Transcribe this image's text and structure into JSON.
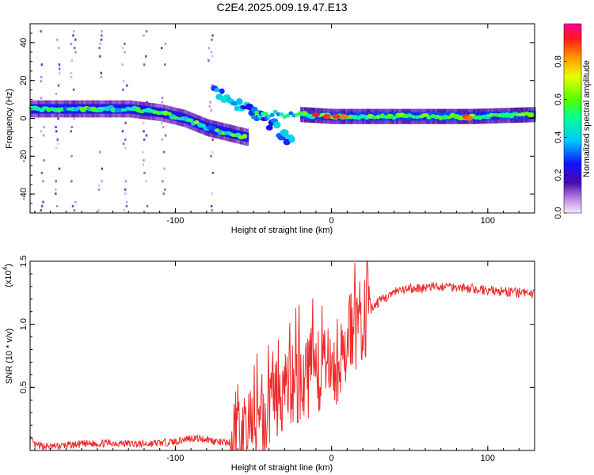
{
  "title": "C2E4.2025.009.19.47.E13",
  "chart_data": [
    {
      "type": "heatmap",
      "xlabel": "Height of straight line (km)",
      "ylabel": "Frequency (Hz)",
      "xlim": [
        -193,
        130
      ],
      "ylim": [
        -50,
        50
      ],
      "x_ticks": [
        -100,
        0,
        100
      ],
      "x_tick_labels": [
        "-100",
        "0",
        "100"
      ],
      "y_ticks": [
        -40,
        -20,
        0,
        20,
        40
      ],
      "y_tick_labels": [
        "-40",
        "-20",
        "0",
        "20",
        "40"
      ],
      "colorbar": {
        "label": "Normalized spectral amplitude",
        "range": [
          0,
          1
        ],
        "ticks": [
          0.0,
          0.2,
          0.4,
          0.6,
          0.8
        ],
        "tick_labels": [
          "0.0",
          "0.2",
          "0.4",
          "0.6",
          "0.8"
        ]
      },
      "main_ridge": {
        "x": [
          -193,
          -170,
          -150,
          -130,
          -110,
          -95,
          -80,
          -70,
          -60,
          -55
        ],
        "freq_hz": [
          5,
          5,
          5,
          5,
          3,
          0,
          -5,
          -7,
          -9,
          -10
        ]
      },
      "branch_ridge": {
        "x": [
          -75,
          -65,
          -55,
          -45,
          -35,
          -25
        ],
        "freq_hz": [
          15,
          10,
          5,
          0,
          -5,
          -13
        ]
      },
      "flat_ridge": {
        "x": [
          -45,
          -20,
          0,
          20,
          60,
          90,
          130
        ],
        "freq_hz": [
          2,
          2,
          1,
          1,
          1,
          1,
          2
        ]
      },
      "hotspots": [
        {
          "x": -10,
          "freq_hz": 2,
          "amp": 0.95
        },
        {
          "x": -3,
          "freq_hz": 1,
          "amp": 0.9
        },
        {
          "x": 3,
          "freq_hz": 1,
          "amp": 0.9
        },
        {
          "x": 8,
          "freq_hz": 1,
          "amp": 0.85
        },
        {
          "x": 86,
          "freq_hz": 1,
          "amp": 0.9
        },
        {
          "x": 88,
          "freq_hz": 0,
          "amp": 0.85
        }
      ]
    },
    {
      "type": "line",
      "xlabel": "Height of straight line (km)",
      "ylabel": "SNR (10 * v/v)",
      "y_multiplier_label": "(x10^4)",
      "y_multiplier_base": "(x10",
      "y_multiplier_exp": "4",
      "y_multiplier_close": ")",
      "xlim": [
        -193,
        130
      ],
      "ylim": [
        0,
        1.5
      ],
      "x_ticks": [
        -100,
        0,
        100
      ],
      "x_tick_labels": [
        "-100",
        "0",
        "100"
      ],
      "y_ticks": [
        0.5,
        1.0,
        1.5
      ],
      "y_tick_labels": [
        "0.5",
        "1.0",
        "1.5"
      ],
      "color": "#ee2a2a",
      "series": [
        {
          "x": [
            -193,
            -190,
            -180,
            -160,
            -140,
            -120,
            -100,
            -90,
            -80,
            -70,
            -60,
            -55,
            -50,
            -45,
            -40,
            -35,
            -30,
            -25,
            -20,
            -15,
            -10,
            -5,
            0,
            5,
            10,
            15,
            20,
            25,
            30,
            40,
            50,
            60,
            70,
            80,
            90,
            100,
            110,
            120,
            130
          ],
          "values": [
            0.1,
            0.04,
            0.03,
            0.05,
            0.06,
            0.05,
            0.07,
            0.1,
            0.09,
            0.06,
            0.07,
            0.1,
            0.15,
            0.25,
            0.35,
            0.45,
            0.5,
            0.5,
            0.55,
            0.6,
            0.65,
            0.6,
            0.65,
            0.75,
            0.85,
            0.95,
            1.05,
            1.12,
            1.18,
            1.25,
            1.28,
            1.29,
            1.3,
            1.3,
            1.28,
            1.27,
            1.26,
            1.25,
            1.24
          ]
        }
      ]
    }
  ]
}
